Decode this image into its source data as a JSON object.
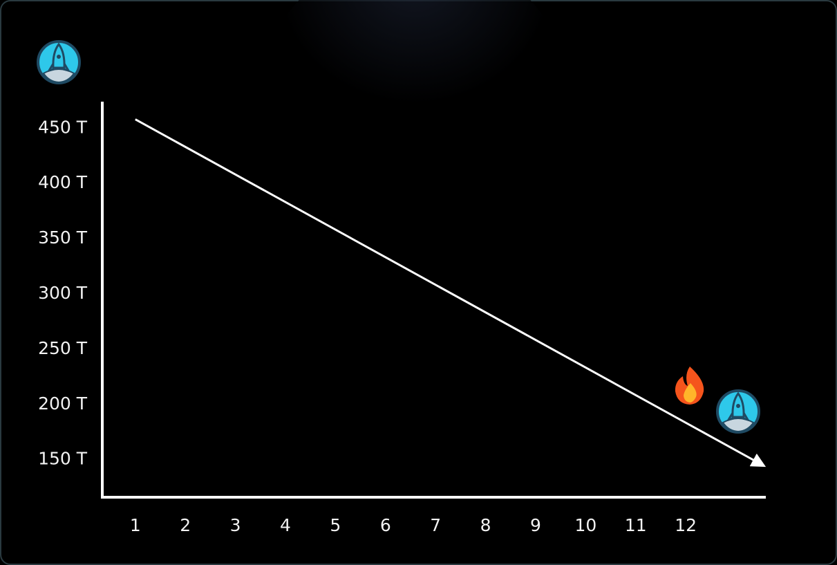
{
  "chart_data": {
    "type": "line",
    "x": [
      1,
      13.5
    ],
    "values": [
      458,
      146
    ],
    "color": "#ffffff",
    "xlim": [
      0.34,
      13.6
    ],
    "xticks": [
      1,
      2,
      3,
      4,
      5,
      6,
      7,
      8,
      9,
      10,
      11,
      12
    ],
    "ylim": [
      116,
      474
    ],
    "yticks": [
      {
        "value": 150,
        "label": "150 T"
      },
      {
        "value": 200,
        "label": "200 T"
      },
      {
        "value": 250,
        "label": "250 T"
      },
      {
        "value": 300,
        "label": "300 T"
      },
      {
        "value": 350,
        "label": "350 T"
      },
      {
        "value": 400,
        "label": "400 T"
      },
      {
        "value": 450,
        "label": "450 T"
      }
    ]
  }
}
